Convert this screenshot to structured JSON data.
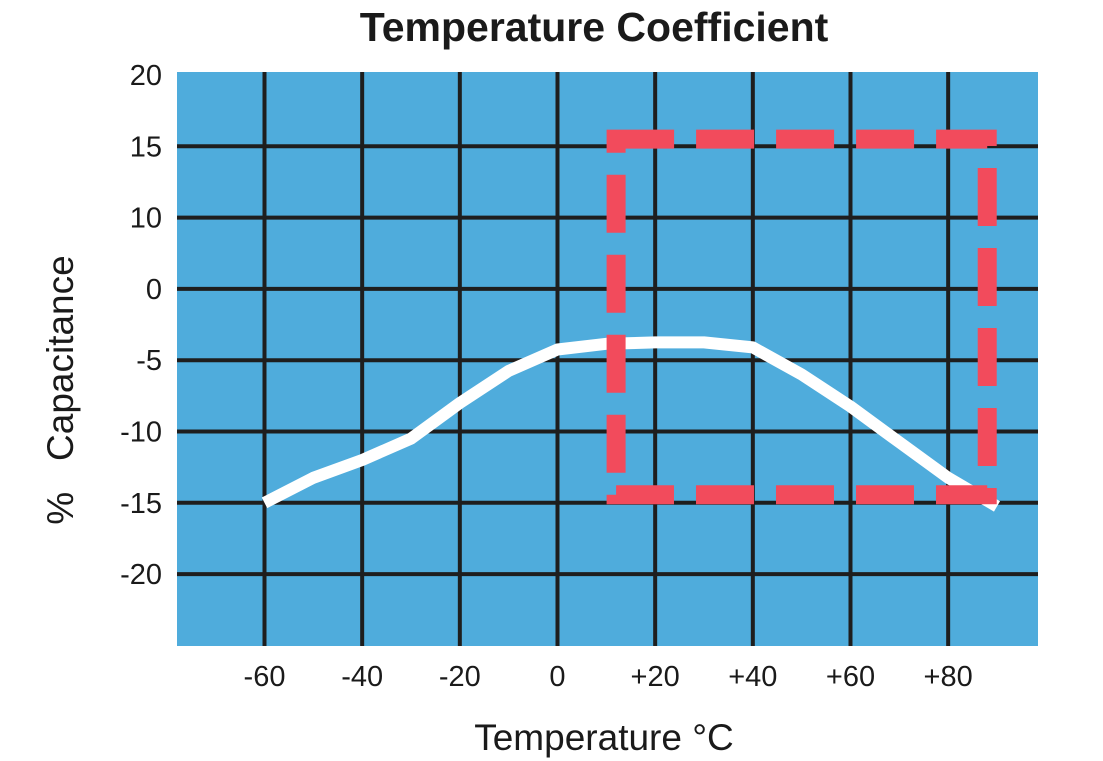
{
  "chart_data": {
    "type": "line",
    "title": "Temperature Coefficient",
    "xlabel": "Temperature °C",
    "ylabel": "%   Capacitance",
    "x_ticks": [
      {
        "value": -60,
        "label": "-60"
      },
      {
        "value": -40,
        "label": "-40"
      },
      {
        "value": -20,
        "label": "-20"
      },
      {
        "value": 0,
        "label": "0"
      },
      {
        "value": 20,
        "label": "+20"
      },
      {
        "value": 40,
        "label": "+40"
      },
      {
        "value": 60,
        "label": "+60"
      },
      {
        "value": 80,
        "label": "+80"
      }
    ],
    "y_ticks": [
      "20",
      "15",
      "10",
      "0",
      "-5",
      "-10",
      "-15",
      "-20"
    ],
    "grid": true,
    "series": [
      {
        "points": [
          {
            "x": -60,
            "tick_index": 6.0
          },
          {
            "x": -50,
            "tick_index": 5.65
          },
          {
            "x": -40,
            "tick_index": 5.4
          },
          {
            "x": -30,
            "tick_index": 5.1
          },
          {
            "x": -20,
            "tick_index": 4.6
          },
          {
            "x": -10,
            "tick_index": 4.15
          },
          {
            "x": 0,
            "tick_index": 3.85
          },
          {
            "x": 10,
            "tick_index": 3.77
          },
          {
            "x": 20,
            "tick_index": 3.75
          },
          {
            "x": 30,
            "tick_index": 3.75
          },
          {
            "x": 40,
            "tick_index": 3.82
          },
          {
            "x": 50,
            "tick_index": 4.2
          },
          {
            "x": 60,
            "tick_index": 4.65
          },
          {
            "x": 70,
            "tick_index": 5.15
          },
          {
            "x": 80,
            "tick_index": 5.65
          },
          {
            "x": 90,
            "tick_index": 6.05
          }
        ]
      }
    ],
    "spec_box": {
      "x_min": 12,
      "x_max": 88,
      "tick_index_top": 0.9,
      "tick_index_bottom": 6.0
    },
    "colors": {
      "plot_background": "#4facdc",
      "grid": "#1e1e1e",
      "curve": "#ffffff",
      "spec_box": "#f24b5c"
    }
  }
}
